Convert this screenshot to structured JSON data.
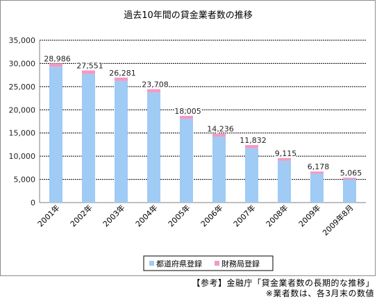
{
  "chart_data": {
    "type": "bar",
    "stacked": true,
    "title": "過去10年間の貸金業者数の推移",
    "categories": [
      "2001年",
      "2002年",
      "2003年",
      "2004年",
      "2005年",
      "2006年",
      "2007年",
      "2008年",
      "2009年",
      "2009年8月"
    ],
    "series": [
      {
        "name": "都道府県登録",
        "color": "#9fcbf5",
        "values": [
          29300,
          27700,
          26200,
          23750,
          18050,
          14200,
          11700,
          9000,
          6200,
          5000
        ]
      },
      {
        "name": "財務局登録",
        "color": "#f29ac3",
        "values": [
          700,
          800,
          750,
          700,
          650,
          650,
          700,
          600,
          500,
          350
        ]
      }
    ],
    "data_labels": [
      "28,986",
      "27,551",
      "26,281",
      "23,708",
      "18,005",
      "14,236",
      "11,832",
      "9,115",
      "6,178",
      "5,065"
    ],
    "y_ticks": [
      "0",
      "5,000",
      "10,000",
      "15,000",
      "20,000",
      "25,000",
      "30,000",
      "35,000"
    ],
    "ylim": [
      0,
      35000
    ],
    "grid": true,
    "legend_position": "bottom"
  },
  "source": {
    "line1": "【参考】金融庁「貸金業者数の長期的な推移」",
    "line2": "※業者数は、各3月末の数値"
  }
}
